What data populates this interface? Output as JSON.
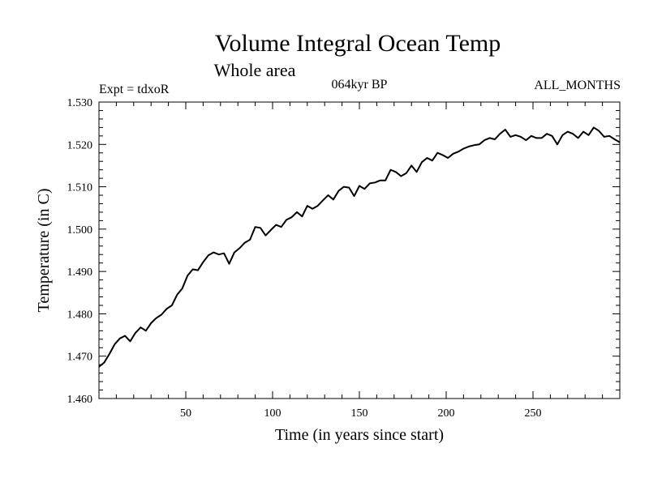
{
  "chart_data": {
    "type": "line",
    "title": "Volume Integral Ocean Temp",
    "subtitle": "Whole area",
    "annotations": {
      "left": "Expt = tdxoR",
      "center": "064kyr BP",
      "right": "ALL_MONTHS"
    },
    "xlabel": "Time (in years since start)",
    "ylabel": "Temperature (in C)",
    "xlim": [
      0,
      300
    ],
    "ylim": [
      1.46,
      1.53
    ],
    "xticks": [
      50,
      100,
      150,
      200,
      250
    ],
    "xtick_labels": [
      "50",
      "100",
      "150",
      "200",
      "250"
    ],
    "yticks": [
      1.46,
      1.47,
      1.48,
      1.49,
      1.5,
      1.51,
      1.52,
      1.53
    ],
    "ytick_labels": [
      "1.460",
      "1.470",
      "1.480",
      "1.490",
      "1.500",
      "1.510",
      "1.520",
      "1.530"
    ],
    "grid": false,
    "legend": "none",
    "line_color": "#000000",
    "series": [
      {
        "x": [
          0,
          3,
          6,
          9,
          12,
          15,
          18,
          21,
          24,
          27,
          30,
          33,
          36,
          39,
          42,
          45,
          48,
          51,
          54,
          57,
          60,
          63,
          66,
          69,
          72,
          75,
          78,
          81,
          84,
          87,
          90,
          93,
          96,
          99,
          102,
          105,
          108,
          111,
          114,
          117,
          120,
          123,
          126,
          129,
          132,
          135,
          138,
          141,
          144,
          147,
          150,
          153,
          156,
          159,
          162,
          165,
          168,
          171,
          174,
          177,
          180,
          183,
          186,
          189,
          192,
          195,
          198,
          201,
          204,
          207,
          210,
          213,
          216,
          219,
          222,
          225,
          228,
          231,
          234,
          237,
          240,
          243,
          246,
          249,
          252,
          255,
          258,
          261,
          264,
          267,
          270,
          273,
          276,
          279,
          282,
          285,
          288,
          291,
          294,
          297,
          300
        ],
        "y": [
          1.4675,
          1.4685,
          1.4705,
          1.4728,
          1.4742,
          1.4748,
          1.4735,
          1.4755,
          1.4768,
          1.476,
          1.4778,
          1.479,
          1.4798,
          1.4812,
          1.482,
          1.4845,
          1.486,
          1.489,
          1.4905,
          1.4903,
          1.4922,
          1.4938,
          1.4945,
          1.494,
          1.4943,
          1.4918,
          1.4945,
          1.4955,
          1.4968,
          1.4975,
          1.5005,
          1.5003,
          1.4985,
          1.4998,
          1.501,
          1.5005,
          1.5022,
          1.5028,
          1.504,
          1.503,
          1.5055,
          1.5048,
          1.5055,
          1.5068,
          1.508,
          1.507,
          1.509,
          1.51,
          1.5098,
          1.5078,
          1.5102,
          1.5095,
          1.5108,
          1.511,
          1.5115,
          1.5115,
          1.514,
          1.5135,
          1.5125,
          1.5132,
          1.515,
          1.5135,
          1.5158,
          1.5168,
          1.5162,
          1.518,
          1.5175,
          1.5168,
          1.5178,
          1.5183,
          1.519,
          1.5195,
          1.5198,
          1.52,
          1.521,
          1.5215,
          1.5212,
          1.5225,
          1.5235,
          1.5218,
          1.5222,
          1.5218,
          1.521,
          1.522,
          1.5215,
          1.5215,
          1.5225,
          1.522,
          1.52,
          1.5222,
          1.523,
          1.5225,
          1.5215,
          1.523,
          1.5222,
          1.524,
          1.5232,
          1.5218,
          1.522,
          1.5212,
          1.5205
        ]
      }
    ]
  }
}
